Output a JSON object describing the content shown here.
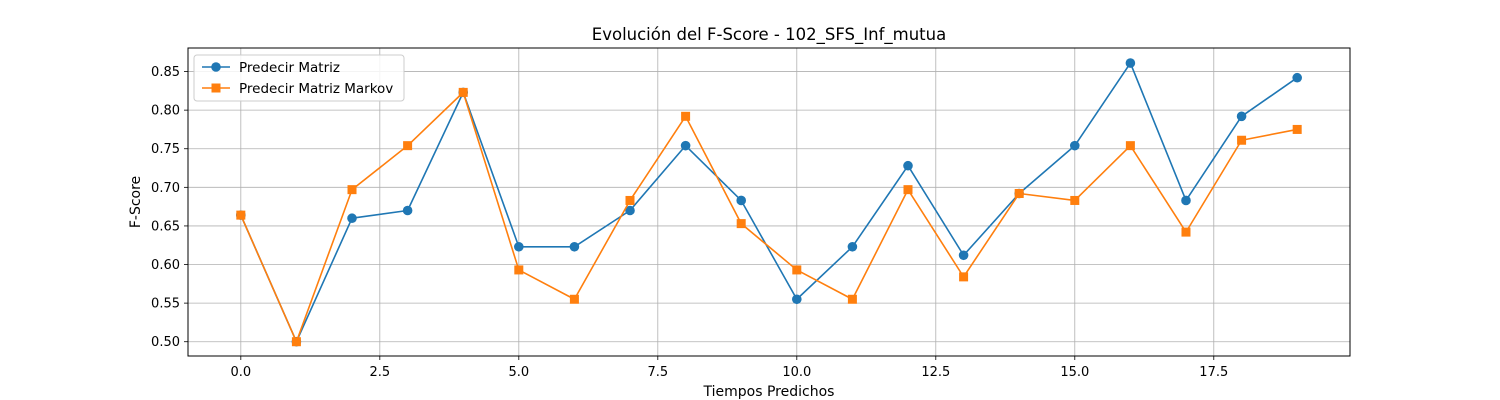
{
  "chart_data": {
    "type": "line",
    "title": "Evolución del F-Score - 102_SFS_Inf_mutua",
    "xlabel": "Tiempos Predichos",
    "ylabel": "F-Score",
    "xlim": [
      -0.95,
      19.95
    ],
    "ylim": [
      0.4815,
      0.8805
    ],
    "xticks": [
      0.0,
      2.5,
      5.0,
      7.5,
      10.0,
      12.5,
      15.0,
      17.5
    ],
    "xtick_labels": [
      "0.0",
      "2.5",
      "5.0",
      "7.5",
      "10.0",
      "12.5",
      "15.0",
      "17.5"
    ],
    "yticks": [
      0.5,
      0.55,
      0.6,
      0.65,
      0.7,
      0.75,
      0.8,
      0.85
    ],
    "ytick_labels": [
      "0.50",
      "0.55",
      "0.60",
      "0.65",
      "0.70",
      "0.75",
      "0.80",
      "0.85"
    ],
    "grid": true,
    "legend_position": "top-left",
    "x": [
      0,
      1,
      2,
      3,
      4,
      5,
      6,
      7,
      8,
      9,
      10,
      11,
      12,
      13,
      14,
      15,
      16,
      17,
      18,
      19
    ],
    "series": [
      {
        "name": "Predecir Matriz",
        "color": "#1f77b4",
        "marker": "circle",
        "values": [
          0.664,
          0.5,
          0.66,
          0.67,
          0.823,
          0.623,
          0.623,
          0.67,
          0.754,
          0.683,
          0.555,
          0.623,
          0.728,
          0.612,
          0.692,
          0.754,
          0.861,
          0.683,
          0.792,
          0.842
        ]
      },
      {
        "name": "Predecir Matriz Markov",
        "color": "#ff7f0e",
        "marker": "square",
        "values": [
          0.664,
          0.5,
          0.697,
          0.754,
          0.823,
          0.593,
          0.555,
          0.683,
          0.792,
          0.653,
          0.593,
          0.555,
          0.697,
          0.584,
          0.692,
          0.683,
          0.754,
          0.642,
          0.761,
          0.775
        ]
      }
    ]
  }
}
